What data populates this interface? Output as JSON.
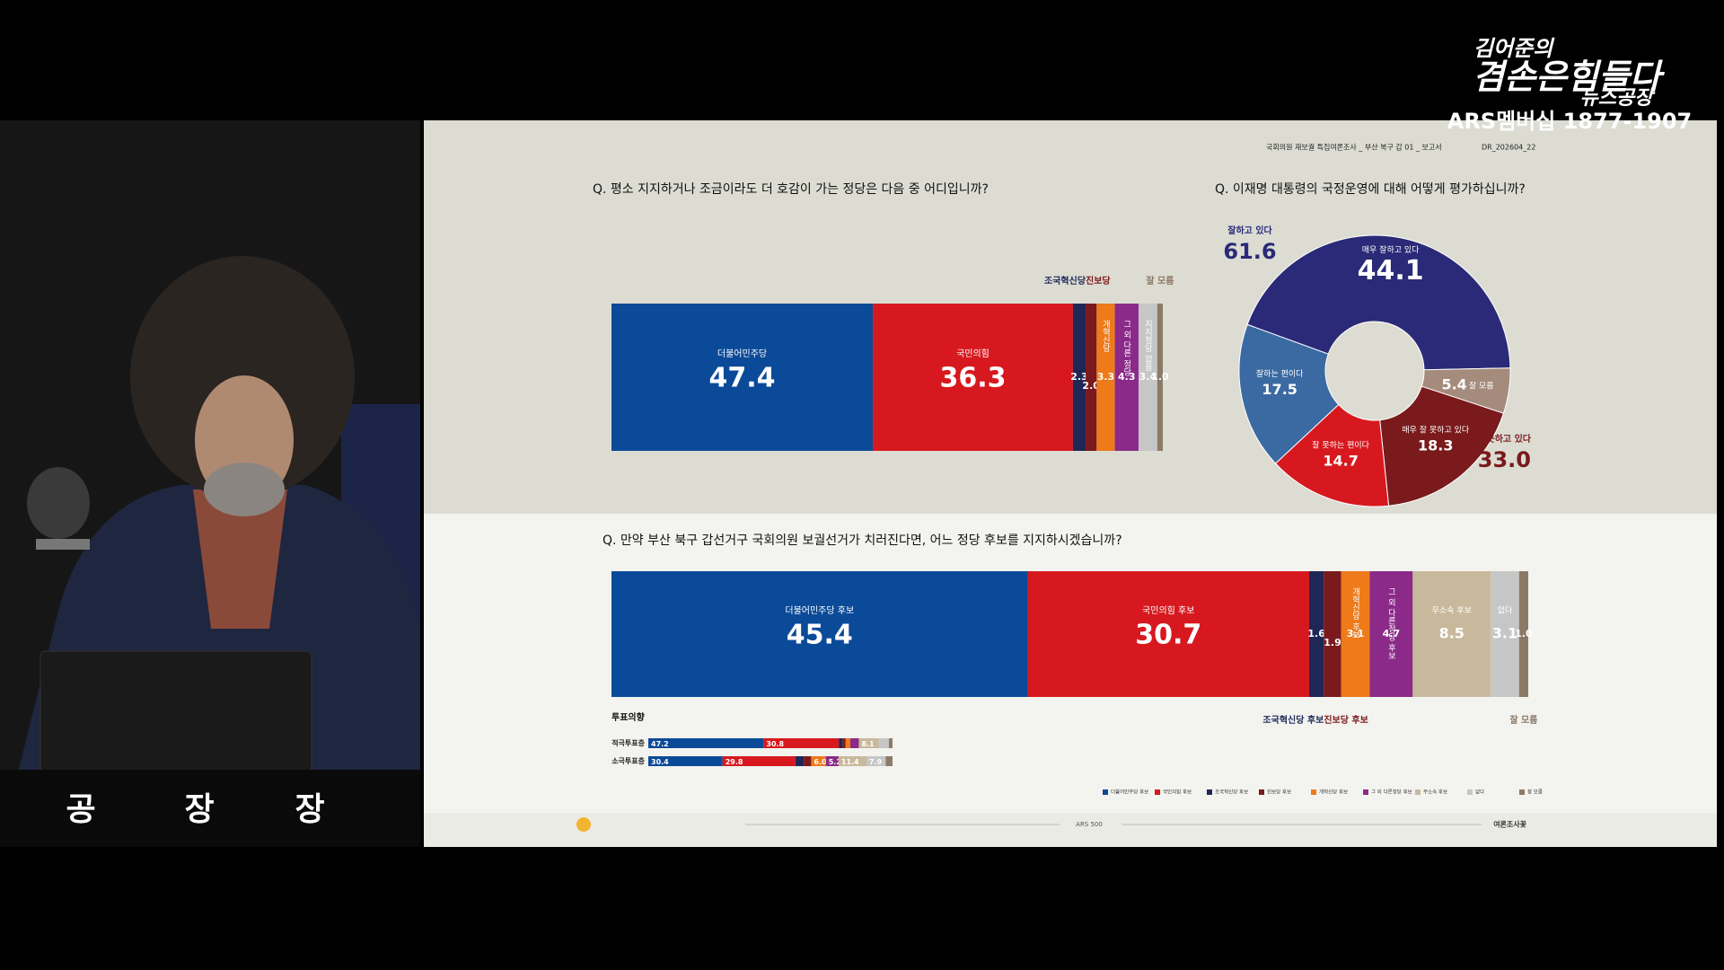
{
  "header": {
    "title": "국회의원 재보궐 특집여론조사 _ 부산 북구 갑 01 _ 보고서",
    "code": "DR_202604_22"
  },
  "logo": {
    "line1": "김어준의",
    "line2": "겸손은힘들다",
    "line3": "뉴스공장",
    "line4": "ARS멤버십 1877-1907"
  },
  "nameplate": [
    "공",
    "장",
    "장"
  ],
  "footer": {
    "center": "ARS 500",
    "right": "여론조사꽃"
  },
  "chart_data": [
    {
      "type": "stacked_bar",
      "title": "Q. 평소 지지하거나 조금이라도 더 호감이 가는 정당은 다음 중 어디입니까?",
      "series": [
        {
          "name": "더불어민주당",
          "color": "#0b4a98",
          "values": [
            47.4
          ],
          "value_labels": [
            "47.4"
          ]
        },
        {
          "name": "국민의힘",
          "color": "#d7191f",
          "values": [
            36.3
          ],
          "value_labels": [
            "36.3"
          ]
        },
        {
          "name": "조국혁신당",
          "color": "#1f2756",
          "values": [
            2.3
          ],
          "value_labels": [
            "2.3"
          ]
        },
        {
          "name": "진보당",
          "color": "#7a1a1c",
          "values": [
            2.0
          ],
          "value_labels": [
            "2.0"
          ]
        },
        {
          "name": "개혁신당",
          "color": "#ee7a1a",
          "values": [
            3.3
          ],
          "value_labels": [
            "3.3"
          ]
        },
        {
          "name": "그 외 다른 정당",
          "color": "#8b2a88",
          "values": [
            4.3
          ],
          "value_labels": [
            "4.3"
          ]
        },
        {
          "name": "지지정당 없음",
          "color": "#c6c6c6",
          "values": [
            3.4
          ],
          "value_labels": [
            "3.4"
          ]
        },
        {
          "name": "잘 모름",
          "color": "#8c7a68",
          "values": [
            1.0
          ],
          "value_labels": [
            "1.0"
          ]
        }
      ]
    },
    {
      "type": "pie",
      "title": "Q. 이재명 대통령의 국정운영에 대해 어떻게 평가하십니까?",
      "categories": [
        "매우 잘하고 있다",
        "잘 모름",
        "매우 잘 못하고 있다",
        "잘 못하는 편이다",
        "잘하는 편이다"
      ],
      "values": [
        44.1,
        5.4,
        18.3,
        14.7,
        17.5
      ],
      "colors": [
        "#2a2a78",
        "#a58b7c",
        "#7a1a1c",
        "#d7191f",
        "#3b6aa2"
      ],
      "group_labels": [
        "잘하고 있다",
        "잘 못하고 있다"
      ],
      "group_values": [
        61.6,
        33.0
      ],
      "group_value_labels": [
        "61.6",
        "33.0"
      ],
      "group_colors": [
        "#2a2a78",
        "#7a1a1c"
      ]
    },
    {
      "type": "stacked_bar",
      "title": "Q. 만약 부산 북구 갑선거구 국회의원 보궐선거가 치러진다면, 어느 정당 후보를 지지하시겠습니까?",
      "series": [
        {
          "name": "더불어민주당 후보",
          "color": "#0b4a98",
          "values": [
            45.4
          ],
          "value_labels": [
            "45.4"
          ]
        },
        {
          "name": "국민의힘 후보",
          "color": "#d7191f",
          "values": [
            30.7
          ],
          "value_labels": [
            "30.7"
          ]
        },
        {
          "name": "조국혁신당 후보",
          "color": "#1f2756",
          "values": [
            1.6
          ],
          "value_labels": [
            "1.6"
          ]
        },
        {
          "name": "진보당 후보",
          "color": "#7a1a1c",
          "values": [
            1.9
          ],
          "value_labels": [
            "1.9"
          ]
        },
        {
          "name": "개혁신당 후보",
          "color": "#ee7a1a",
          "values": [
            3.1
          ],
          "value_labels": [
            "3.1"
          ]
        },
        {
          "name": "그 외 다른정당 후보",
          "color": "#8b2a88",
          "values": [
            4.7
          ],
          "value_labels": [
            "4.7"
          ]
        },
        {
          "name": "무소속 후보",
          "color": "#c9b99c",
          "values": [
            8.5
          ],
          "value_labels": [
            "8.5"
          ]
        },
        {
          "name": "없다",
          "color": "#c6c6c6",
          "values": [
            3.1
          ],
          "value_labels": [
            "3.1"
          ]
        },
        {
          "name": "잘 모름",
          "color": "#8c7a68",
          "values": [
            1.0
          ],
          "value_labels": [
            "1.0"
          ]
        }
      ]
    },
    {
      "type": "stacked_rows",
      "title": "투표의향",
      "categories": [
        "적극투표층",
        "소극투표층"
      ],
      "series": [
        {
          "name": "더불어민주당 후보",
          "color": "#0b4a98",
          "values": [
            47.2,
            30.4
          ],
          "value_labels": [
            "47.2",
            "30.4"
          ]
        },
        {
          "name": "국민의힘 후보",
          "color": "#d7191f",
          "values": [
            30.8,
            29.8
          ],
          "value_labels": [
            "30.8",
            "29.8"
          ]
        },
        {
          "name": "조국혁신당 후보",
          "color": "#1f2756",
          "values": [
            1.5,
            3.5
          ],
          "value_labels": [
            null,
            null
          ]
        },
        {
          "name": "진보당 후보",
          "color": "#7a1a1c",
          "values": [
            1.2,
            3.0
          ],
          "value_labels": [
            null,
            null
          ]
        },
        {
          "name": "개혁신당 후보",
          "color": "#ee7a1a",
          "values": [
            2.0,
            6.0
          ],
          "value_labels": [
            null,
            "6.0"
          ]
        },
        {
          "name": "그 외 다른정당 후보",
          "color": "#8b2a88",
          "values": [
            3.5,
            5.2
          ],
          "value_labels": [
            null,
            "5.2"
          ]
        },
        {
          "name": "무소속 후보",
          "color": "#c9b99c",
          "values": [
            8.1,
            11.4
          ],
          "value_labels": [
            "8.1",
            "11.4"
          ]
        },
        {
          "name": "없다",
          "color": "#c6c6c6",
          "values": [
            4.2,
            7.9
          ],
          "value_labels": [
            null,
            "7.9"
          ]
        },
        {
          "name": "잘 모름",
          "color": "#8c7a68",
          "values": [
            1.5,
            2.8
          ],
          "value_labels": [
            null,
            null
          ]
        }
      ]
    }
  ]
}
